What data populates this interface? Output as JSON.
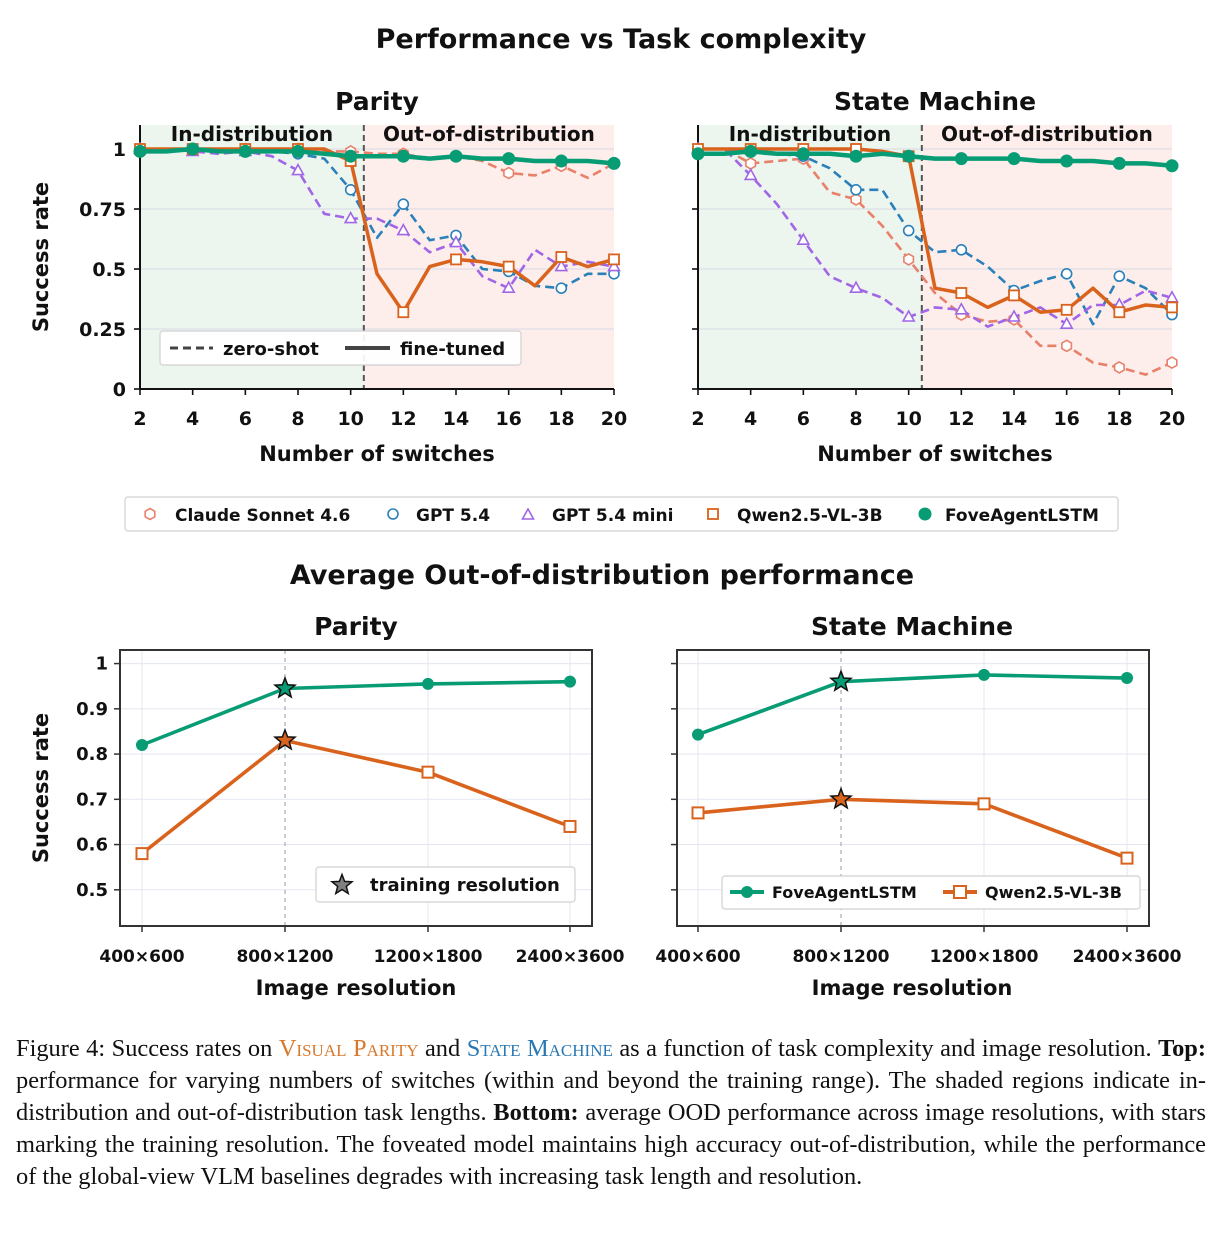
{
  "top_title": "Performance vs Task complexity",
  "bottom_title": "Average Out-of-distribution performance",
  "region_labels": {
    "in": "In-distribution",
    "out": "Out-of-distribution"
  },
  "line_style_legend": {
    "dashed": "zero-shot",
    "solid": "fine-tuned"
  },
  "training_resolution_label": "training resolution",
  "colors": {
    "claude": "#e8806a",
    "gpt": "#2a80b9",
    "gptmini": "#a066e6",
    "qwen": "#d9631c",
    "fove": "#079c74",
    "in_bg": "#edf5ef",
    "out_bg": "#fdeeec",
    "in_text": "#3f7d5a",
    "out_text": "#a0504c"
  },
  "series_names": {
    "claude": "Claude Sonnet 4.6",
    "gpt": "GPT 5.4",
    "gptmini": "GPT 5.4 mini",
    "qwen": "Qwen2.5-VL-3B",
    "fove": "FoveAgentLSTM"
  },
  "chart_data": [
    {
      "type": "line",
      "title": "Parity",
      "xlabel": "Number of switches",
      "ylabel": "Success rate",
      "xlim": [
        2,
        20
      ],
      "ylim": [
        0,
        1.1
      ],
      "xticks": [
        2,
        4,
        6,
        8,
        10,
        12,
        14,
        16,
        18,
        20
      ],
      "yticks": [
        0,
        0.25,
        0.5,
        0.75,
        1
      ],
      "ytick_labels": [
        "0",
        "0.25",
        "0.5",
        "0.75",
        "1"
      ],
      "in_distribution_range": [
        2,
        10.5
      ],
      "zero_shot_boundary": 10.5,
      "x": [
        2,
        3,
        4,
        5,
        6,
        7,
        8,
        9,
        10,
        11,
        12,
        13,
        14,
        15,
        16,
        17,
        18,
        19,
        20
      ],
      "series": [
        {
          "name": "Claude Sonnet 4.6",
          "key": "claude",
          "style": "dashed",
          "marker": "hexagon",
          "values": [
            1.0,
            1.0,
            1.0,
            1.0,
            1.0,
            1.0,
            1.0,
            0.99,
            0.99,
            0.98,
            0.98,
            0.96,
            0.97,
            0.95,
            0.9,
            0.89,
            0.93,
            0.88,
            0.94
          ]
        },
        {
          "name": "GPT 5.4",
          "key": "gpt",
          "style": "dashed",
          "marker": "circle",
          "values": [
            1.0,
            1.0,
            1.0,
            1.0,
            0.99,
            0.99,
            0.98,
            0.96,
            0.83,
            0.63,
            0.77,
            0.62,
            0.64,
            0.5,
            0.49,
            0.43,
            0.42,
            0.48,
            0.48
          ]
        },
        {
          "name": "GPT 5.4 mini",
          "key": "gptmini",
          "style": "dashed",
          "marker": "triangle",
          "values": [
            1.0,
            1.0,
            0.99,
            0.98,
            0.99,
            0.97,
            0.91,
            0.73,
            0.71,
            0.71,
            0.66,
            0.57,
            0.61,
            0.47,
            0.42,
            0.58,
            0.51,
            0.53,
            0.51
          ]
        },
        {
          "name": "Qwen2.5-VL-3B",
          "key": "qwen",
          "style": "solid",
          "marker": "square",
          "values": [
            1.0,
            1.0,
            1.0,
            1.0,
            1.0,
            1.0,
            1.0,
            1.0,
            0.95,
            0.48,
            0.32,
            0.51,
            0.54,
            0.53,
            0.51,
            0.43,
            0.55,
            0.51,
            0.54
          ]
        },
        {
          "name": "FoveAgentLSTM",
          "key": "fove",
          "style": "solid",
          "marker": "filled-circle",
          "values": [
            0.99,
            0.99,
            1.0,
            0.99,
            0.99,
            0.99,
            0.99,
            0.98,
            0.97,
            0.97,
            0.97,
            0.96,
            0.97,
            0.96,
            0.96,
            0.95,
            0.95,
            0.95,
            0.94
          ]
        }
      ]
    },
    {
      "type": "line",
      "title": "State Machine",
      "xlabel": "Number of switches",
      "ylabel": "",
      "xlim": [
        2,
        20
      ],
      "ylim": [
        0,
        1.1
      ],
      "xticks": [
        2,
        4,
        6,
        8,
        10,
        12,
        14,
        16,
        18,
        20
      ],
      "in_distribution_range": [
        2,
        10.5
      ],
      "zero_shot_boundary": 10.5,
      "x": [
        2,
        3,
        4,
        5,
        6,
        7,
        8,
        9,
        10,
        11,
        12,
        13,
        14,
        15,
        16,
        17,
        18,
        19,
        20
      ],
      "series": [
        {
          "name": "Claude Sonnet 4.6",
          "key": "claude",
          "style": "dashed",
          "marker": "hexagon",
          "values": [
            1.0,
            1.0,
            0.94,
            0.95,
            0.96,
            0.82,
            0.79,
            0.68,
            0.54,
            0.4,
            0.31,
            0.28,
            0.29,
            0.18,
            0.18,
            0.11,
            0.09,
            0.06,
            0.11
          ]
        },
        {
          "name": "GPT 5.4",
          "key": "gpt",
          "style": "dashed",
          "marker": "circle",
          "values": [
            1.0,
            1.0,
            0.99,
            0.98,
            0.97,
            0.92,
            0.83,
            0.83,
            0.66,
            0.57,
            0.58,
            0.51,
            0.41,
            0.45,
            0.48,
            0.27,
            0.47,
            0.42,
            0.31
          ]
        },
        {
          "name": "GPT 5.4 mini",
          "key": "gptmini",
          "style": "dashed",
          "marker": "triangle",
          "values": [
            1.0,
            1.0,
            0.89,
            0.77,
            0.62,
            0.47,
            0.42,
            0.38,
            0.3,
            0.34,
            0.33,
            0.26,
            0.3,
            0.34,
            0.27,
            0.35,
            0.35,
            0.41,
            0.38
          ]
        },
        {
          "name": "Qwen2.5-VL-3B",
          "key": "qwen",
          "style": "solid",
          "marker": "square",
          "values": [
            1.0,
            1.0,
            1.0,
            1.0,
            1.0,
            1.0,
            1.0,
            0.99,
            0.97,
            0.42,
            0.4,
            0.34,
            0.39,
            0.32,
            0.33,
            0.42,
            0.32,
            0.35,
            0.34
          ]
        },
        {
          "name": "FoveAgentLSTM",
          "key": "fove",
          "style": "solid",
          "marker": "filled-circle",
          "values": [
            0.98,
            0.98,
            0.99,
            0.98,
            0.98,
            0.98,
            0.97,
            0.98,
            0.97,
            0.96,
            0.96,
            0.96,
            0.96,
            0.95,
            0.95,
            0.95,
            0.94,
            0.94,
            0.93
          ]
        }
      ]
    },
    {
      "type": "line",
      "title": "Parity",
      "xlabel": "Image resolution",
      "ylabel": "Success rate",
      "categories": [
        "400×600",
        "800×1200",
        "1200×1800",
        "2400×3600"
      ],
      "ylim": [
        0.42,
        1.03
      ],
      "yticks": [
        0.5,
        0.6,
        0.7,
        0.8,
        0.9,
        1
      ],
      "ytick_labels": [
        "0.5",
        "0.6",
        "0.7",
        "0.8",
        "0.9",
        "1"
      ],
      "training_resolution_index": 1,
      "series": [
        {
          "name": "FoveAgentLSTM",
          "key": "fove",
          "marker": "filled-circle",
          "values": [
            0.82,
            0.945,
            0.955,
            0.96
          ]
        },
        {
          "name": "Qwen2.5-VL-3B",
          "key": "qwen",
          "marker": "square",
          "values": [
            0.58,
            0.83,
            0.76,
            0.64
          ]
        }
      ]
    },
    {
      "type": "line",
      "title": "State Machine",
      "xlabel": "Image resolution",
      "ylabel": "",
      "categories": [
        "400×600",
        "800×1200",
        "1200×1800",
        "2400×3600"
      ],
      "ylim": [
        0.42,
        1.03
      ],
      "training_resolution_index": 1,
      "series": [
        {
          "name": "FoveAgentLSTM",
          "key": "fove",
          "marker": "filled-circle",
          "values": [
            0.843,
            0.96,
            0.975,
            0.968
          ]
        },
        {
          "name": "Qwen2.5-VL-3B",
          "key": "qwen",
          "marker": "square",
          "values": [
            0.67,
            0.7,
            0.69,
            0.57
          ]
        }
      ]
    }
  ],
  "caption": {
    "prefix": "Figure 4: Success rates on ",
    "task1": "Visual Parity",
    "and": " and ",
    "task2": "State Machine",
    "part1": " as a function of task complexity and image resolution. ",
    "top_label": "Top:",
    "top_text": " performance for varying numbers of switches (within and beyond the training range). The shaded regions indicate in-distribution and out-of-distribution task lengths. ",
    "bottom_label": "Bottom:",
    "bottom_text": " average OOD performance across image resolutions, with stars marking the training resolution. The foveated model maintains high accuracy out-of-distribution, while the performance of the global-view VLM baselines degrades with increasing task length and resolution."
  }
}
